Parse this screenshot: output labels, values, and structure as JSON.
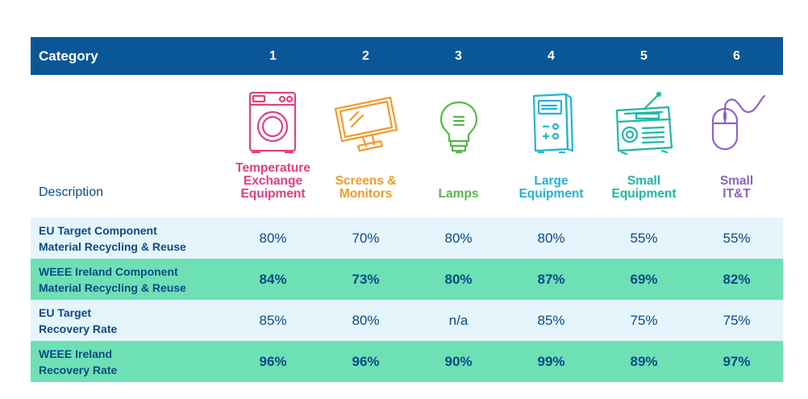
{
  "header": {
    "category_label": "Category",
    "columns": [
      "1",
      "2",
      "3",
      "4",
      "5",
      "6"
    ]
  },
  "description": {
    "label": "Description",
    "items": [
      {
        "label": "Temperature\nExchange\nEquipment",
        "color": "#e4407f",
        "icon": "washing-machine-icon"
      },
      {
        "label": "Screens &\nMonitors",
        "color": "#f39a2d",
        "icon": "monitor-icon"
      },
      {
        "label": "Lamps",
        "color": "#55b948",
        "icon": "light-bulb-icon"
      },
      {
        "label": "Large\nEquipment",
        "color": "#22b3d4",
        "icon": "appliance-icon"
      },
      {
        "label": "Small\nEquipment",
        "color": "#1fb7a6",
        "icon": "radio-icon"
      },
      {
        "label": "Small\nIT&T",
        "color": "#8b63c7",
        "icon": "computer-mouse-icon"
      }
    ]
  },
  "rows": [
    {
      "line1": "EU Target Component",
      "line2": "Material Recycling & Reuse",
      "values": [
        "80%",
        "70%",
        "80%",
        "80%",
        "55%",
        "55%"
      ],
      "style": "light"
    },
    {
      "line1": "WEEE Ireland Component",
      "line2": "Material Recycling & Reuse",
      "values": [
        "84%",
        "73%",
        "80%",
        "87%",
        "69%",
        "82%"
      ],
      "style": "green"
    },
    {
      "line1": "EU Target",
      "line2": "Recovery Rate",
      "values": [
        "85%",
        "80%",
        "n/a",
        "85%",
        "75%",
        "75%"
      ],
      "style": "light"
    },
    {
      "line1": "WEEE Ireland",
      "line2": "Recovery Rate",
      "values": [
        "96%",
        "96%",
        "90%",
        "99%",
        "89%",
        "97%"
      ],
      "style": "green"
    }
  ],
  "colors": {
    "header_bg": "#0a5797",
    "light_row": "#e6f4fb",
    "green_row": "#6ee0b5",
    "text": "#0a4a85"
  }
}
